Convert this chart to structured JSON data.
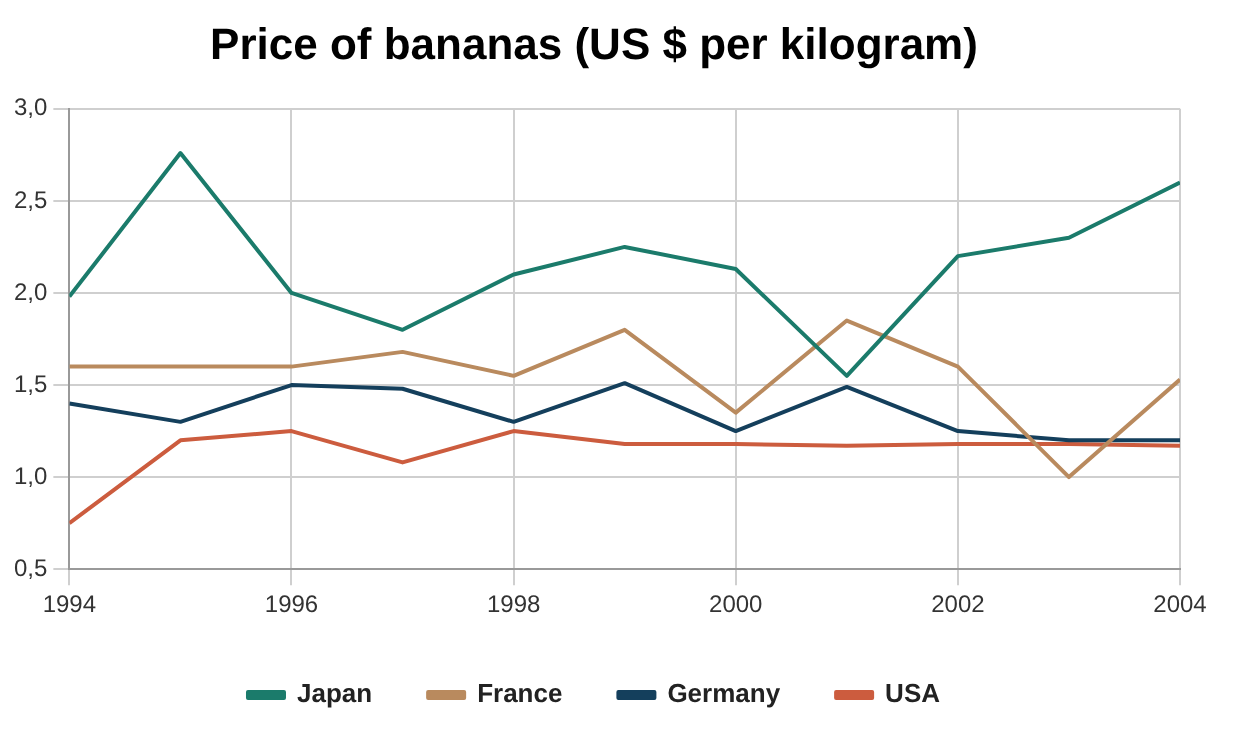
{
  "chart_data": {
    "type": "line",
    "title": "Price of bananas (US $ per kilogram)",
    "x": [
      1994,
      1995,
      1996,
      1997,
      1998,
      1999,
      2000,
      2001,
      2002,
      2003,
      2004
    ],
    "series": [
      {
        "name": "Japan",
        "color": "#1b7b6b",
        "values": [
          1.98,
          2.76,
          2.0,
          1.8,
          2.1,
          2.25,
          2.13,
          1.55,
          2.2,
          2.3,
          2.6
        ]
      },
      {
        "name": "France",
        "color": "#b98a5e",
        "values": [
          1.6,
          1.6,
          1.6,
          1.68,
          1.55,
          1.8,
          1.35,
          1.85,
          1.6,
          1.0,
          1.53
        ]
      },
      {
        "name": "Germany",
        "color": "#143f5c",
        "values": [
          1.4,
          1.3,
          1.5,
          1.48,
          1.3,
          1.51,
          1.25,
          1.49,
          1.25,
          1.2,
          1.2
        ]
      },
      {
        "name": "USA",
        "color": "#cc5c3e",
        "values": [
          0.75,
          1.2,
          1.25,
          1.08,
          1.25,
          1.18,
          1.18,
          1.17,
          1.18,
          1.18,
          1.17
        ]
      }
    ],
    "xlim": [
      1994,
      2004
    ],
    "xticks": [
      1994,
      1996,
      1998,
      2000,
      2002,
      2004
    ],
    "ylim": [
      0.5,
      3.0
    ],
    "yticks": [
      {
        "value": 0.5,
        "label": "0,5"
      },
      {
        "value": 1.0,
        "label": "1,0"
      },
      {
        "value": 1.5,
        "label": "1,5"
      },
      {
        "value": 2.0,
        "label": "2,0"
      },
      {
        "value": 2.5,
        "label": "2,5"
      },
      {
        "value": 3.0,
        "label": "3,0"
      }
    ],
    "grid": true,
    "legend": "bottom",
    "marker": "none",
    "line_style": "solid"
  }
}
